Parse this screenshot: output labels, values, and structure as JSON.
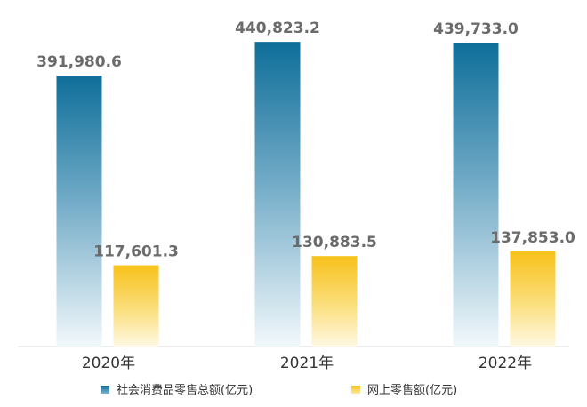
{
  "chart_data": {
    "type": "bar",
    "categories": [
      "2020年",
      "2021年",
      "2022年"
    ],
    "series": [
      {
        "name": "社会消费品零售总额(亿元)",
        "values": [
          391980.6,
          440823.2,
          439733.0
        ],
        "labels": [
          "391,980.6",
          "440,823.2",
          "439,733.0"
        ],
        "color": "#0e6e99"
      },
      {
        "name": "网上零售额(亿元)",
        "values": [
          117601.3,
          130883.5,
          137853.0
        ],
        "labels": [
          "117,601.3",
          "130,883.5",
          "137,853.0"
        ],
        "color": "#f7c11a"
      }
    ],
    "ylim": [
      0,
      450000
    ],
    "grid": false,
    "legend_position": "bottom"
  }
}
